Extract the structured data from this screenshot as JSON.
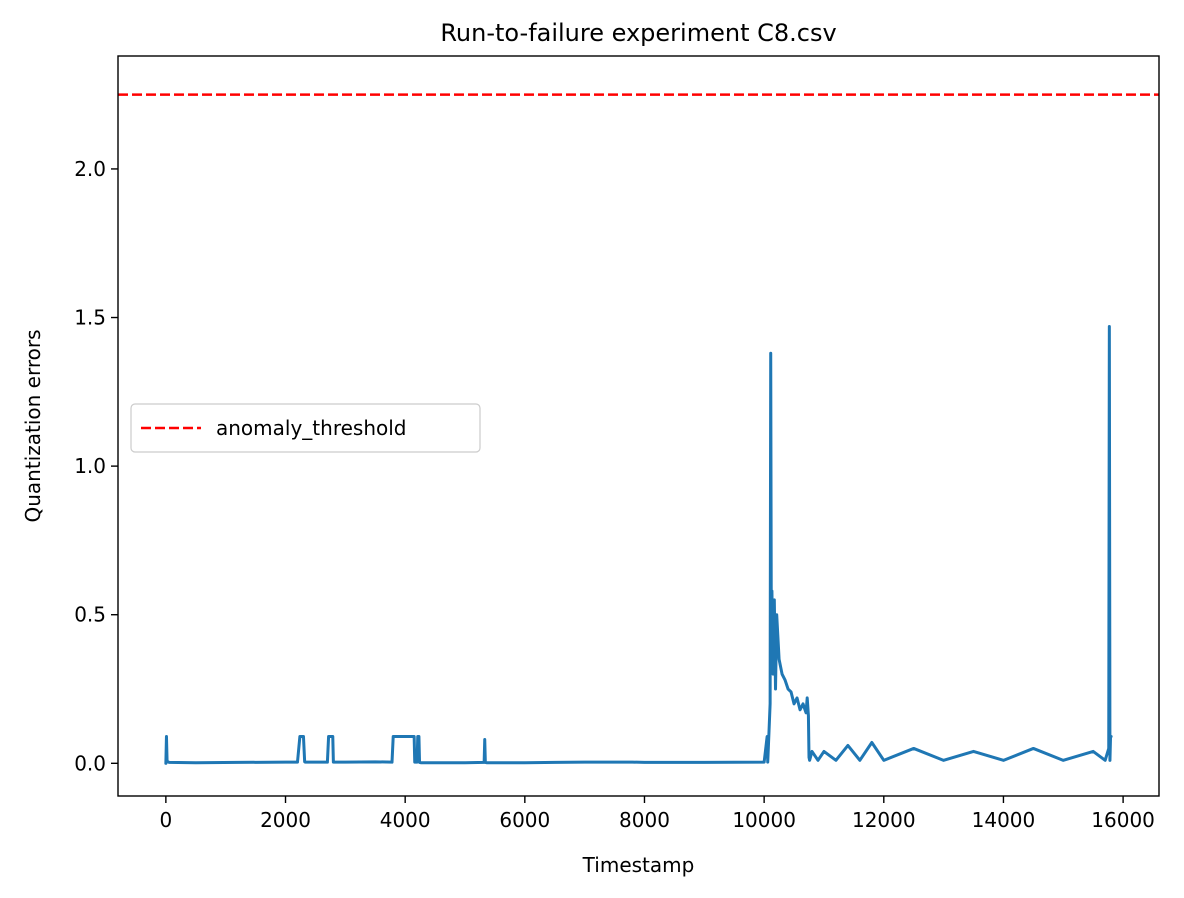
{
  "chart_data": {
    "type": "line",
    "title": "Run-to-failure experiment C8.csv",
    "xlabel": "Timestamp",
    "ylabel": "Quantization errors",
    "xlim": [
      -800,
      16600
    ],
    "ylim": [
      -0.11,
      2.38
    ],
    "xticks": [
      0,
      2000,
      4000,
      6000,
      8000,
      10000,
      12000,
      14000,
      16000
    ],
    "xtick_labels": [
      "0",
      "2000",
      "4000",
      "6000",
      "8000",
      "10000",
      "12000",
      "14000",
      "16000"
    ],
    "yticks": [
      0.0,
      0.5,
      1.0,
      1.5,
      2.0
    ],
    "ytick_labels": [
      "0.0",
      "0.5",
      "1.0",
      "1.5",
      "2.0"
    ],
    "grid": false,
    "legend_position": "center-left",
    "series": [
      {
        "type": "line",
        "style": "solid",
        "color": "#1f77b4",
        "x": [
          0,
          10,
          20,
          30,
          60,
          500,
          1200,
          2000,
          2200,
          2240,
          2250,
          2300,
          2320,
          2330,
          2700,
          2720,
          2730,
          2790,
          2800,
          3000,
          3500,
          3780,
          3800,
          4150,
          4160,
          4200,
          4210,
          4230,
          4240,
          4260,
          5000,
          5320,
          5330,
          5340,
          5360,
          6000,
          6500,
          7000,
          7800,
          8000,
          9000,
          10000,
          10050,
          10060,
          10080,
          10100,
          10110,
          10120,
          10130,
          10150,
          10170,
          10190,
          10210,
          10250,
          10300,
          10350,
          10400,
          10450,
          10500,
          10550,
          10600,
          10650,
          10700,
          10720,
          10740,
          10750,
          10760,
          10800,
          10900,
          11000,
          11200,
          11400,
          11600,
          11800,
          12000,
          12500,
          13000,
          13500,
          14000,
          14500,
          15000,
          15500,
          15700,
          15760,
          15770,
          15780,
          15790,
          15800
        ],
        "y": [
          0.0,
          0.09,
          0.01,
          0.005,
          0.003,
          0.002,
          0.003,
          0.004,
          0.004,
          0.09,
          0.09,
          0.09,
          0.005,
          0.004,
          0.004,
          0.09,
          0.09,
          0.09,
          0.004,
          0.004,
          0.005,
          0.004,
          0.09,
          0.09,
          0.004,
          0.004,
          0.09,
          0.09,
          0.003,
          0.002,
          0.002,
          0.003,
          0.08,
          0.003,
          0.002,
          0.002,
          0.003,
          0.004,
          0.004,
          0.003,
          0.003,
          0.004,
          0.09,
          0.004,
          0.1,
          0.2,
          1.38,
          0.45,
          0.58,
          0.3,
          0.55,
          0.25,
          0.5,
          0.35,
          0.3,
          0.28,
          0.25,
          0.24,
          0.2,
          0.22,
          0.18,
          0.2,
          0.17,
          0.22,
          0.16,
          0.02,
          0.01,
          0.04,
          0.01,
          0.04,
          0.01,
          0.06,
          0.01,
          0.07,
          0.01,
          0.05,
          0.01,
          0.04,
          0.01,
          0.05,
          0.01,
          0.04,
          0.01,
          0.05,
          1.47,
          0.01,
          0.09,
          0.09
        ]
      },
      {
        "name": "anomaly_threshold",
        "type": "hline",
        "style": "dashed",
        "color": "#ff0000",
        "y": 2.25
      }
    ]
  }
}
